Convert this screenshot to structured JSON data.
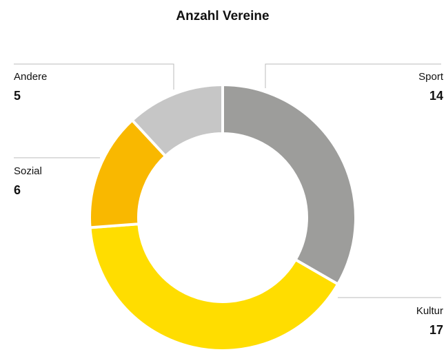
{
  "chart_data": {
    "type": "donut",
    "title": "Anzahl Vereine",
    "categories": [
      "Sport",
      "Kultur",
      "Sozial",
      "Andere"
    ],
    "values": [
      14,
      17,
      6,
      5
    ],
    "colors": [
      "#9d9d9b",
      "#ffdd00",
      "#f9b800",
      "#c6c6c6"
    ]
  }
}
